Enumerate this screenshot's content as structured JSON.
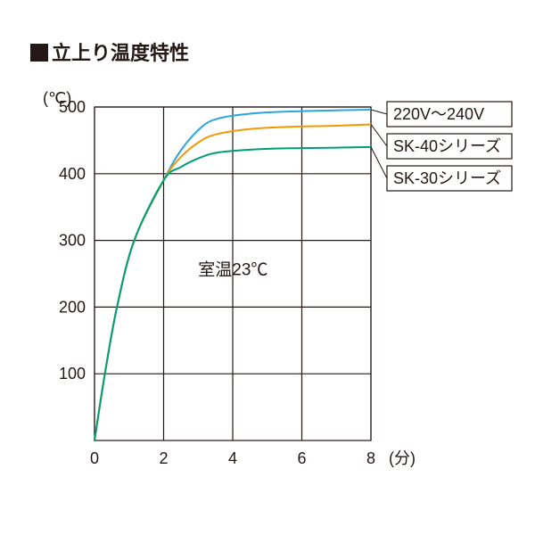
{
  "title": "立上り温度特性",
  "chart": {
    "type": "line",
    "background_color": "#ffffff",
    "grid_color": "#231815",
    "axis_text_color": "#231815",
    "font_size_axis": 18,
    "font_size_tick": 18,
    "font_size_title": 22,
    "x": {
      "label": "(分)",
      "min": 0,
      "max": 8,
      "ticks": [
        0,
        2,
        4,
        6,
        8
      ]
    },
    "y": {
      "label": "(℃)",
      "min": 0,
      "max": 500,
      "ticks": [
        100,
        200,
        300,
        400,
        500
      ]
    },
    "room_temp_text": "室温23℃",
    "series": [
      {
        "name": "220V〜240V",
        "color": "#2ca6e0",
        "stroke_width": 2,
        "points": [
          [
            0,
            0
          ],
          [
            0.3,
            100
          ],
          [
            0.65,
            200
          ],
          [
            1.15,
            300
          ],
          [
            2,
            390
          ],
          [
            2.5,
            435
          ],
          [
            3.1,
            470
          ],
          [
            3.6,
            483
          ],
          [
            4.5,
            490
          ],
          [
            5.5,
            493
          ],
          [
            7,
            495
          ],
          [
            8,
            496
          ]
        ]
      },
      {
        "name": "SK-40シリーズ",
        "color": "#f39800",
        "stroke_width": 2,
        "points": [
          [
            0,
            0
          ],
          [
            0.3,
            100
          ],
          [
            0.65,
            200
          ],
          [
            1.15,
            300
          ],
          [
            2,
            390
          ],
          [
            2.5,
            425
          ],
          [
            3.1,
            450
          ],
          [
            3.6,
            460
          ],
          [
            4.5,
            467
          ],
          [
            5.5,
            470
          ],
          [
            7,
            472
          ],
          [
            8,
            474
          ]
        ]
      },
      {
        "name": "SK-30シリーズ",
        "color": "#009e73",
        "stroke_width": 2,
        "points": [
          [
            0,
            0
          ],
          [
            0.3,
            100
          ],
          [
            0.65,
            200
          ],
          [
            1.15,
            300
          ],
          [
            2,
            390
          ],
          [
            2.5,
            410
          ],
          [
            3.1,
            425
          ],
          [
            3.6,
            432
          ],
          [
            4.5,
            436
          ],
          [
            5.5,
            438
          ],
          [
            7,
            439
          ],
          [
            8,
            440
          ]
        ]
      }
    ],
    "series_label_boxes": [
      {
        "text": "220V〜240V",
        "leader_from_series": 0
      },
      {
        "text": "SK-40シリーズ",
        "leader_from_series": 1
      },
      {
        "text": "SK-30シリーズ",
        "leader_from_series": 2
      }
    ]
  }
}
